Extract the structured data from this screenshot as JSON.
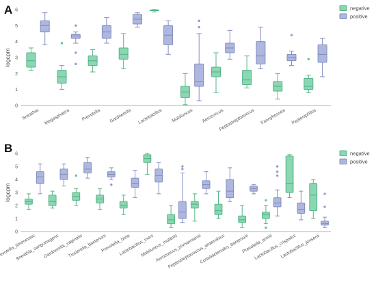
{
  "chart_data": [
    {
      "type": "box",
      "panel_label": "A",
      "ylabel": "logcpm",
      "ylim": [
        0,
        6
      ],
      "yticks": [
        0,
        1,
        2,
        3,
        4,
        5,
        6
      ],
      "grid": false,
      "legend_position": "top-right",
      "series": [
        {
          "name": "negative",
          "color": "#5ec795"
        },
        {
          "name": "positive",
          "color": "#8f9cd3"
        }
      ],
      "categories": [
        {
          "label": "Sneathia",
          "negative": {
            "min": 2.2,
            "q1": 2.4,
            "median": 2.8,
            "q3": 3.3,
            "max": 3.6,
            "outliers": []
          },
          "positive": {
            "min": 3.8,
            "q1": 4.6,
            "median": 5.0,
            "q3": 5.3,
            "max": 5.8,
            "outliers": []
          }
        },
        {
          "label": "Megasphaera",
          "negative": {
            "min": 1.0,
            "q1": 1.4,
            "median": 1.8,
            "q3": 2.2,
            "max": 2.5,
            "outliers": [
              3.9
            ]
          },
          "positive": {
            "min": 3.9,
            "q1": 4.2,
            "median": 4.35,
            "q3": 4.45,
            "max": 4.6,
            "outliers": [
              5.0,
              3.3,
              2.6
            ]
          }
        },
        {
          "label": "Prevotella",
          "negative": {
            "min": 2.1,
            "q1": 2.5,
            "median": 2.8,
            "q3": 3.1,
            "max": 3.5,
            "outliers": []
          },
          "positive": {
            "min": 3.9,
            "q1": 4.2,
            "median": 4.6,
            "q3": 5.0,
            "max": 5.5,
            "outliers": []
          }
        },
        {
          "label": "Gardnerella",
          "negative": {
            "min": 2.3,
            "q1": 2.9,
            "median": 3.2,
            "q3": 3.6,
            "max": 4.5,
            "outliers": []
          },
          "positive": {
            "min": 4.9,
            "q1": 5.1,
            "median": 5.4,
            "q3": 5.7,
            "max": 5.8,
            "outliers": []
          }
        },
        {
          "label": "Lactobacillus",
          "negative": {
            "min": 5.85,
            "q1": 5.93,
            "median": 5.96,
            "q3": 5.98,
            "max": 6.0,
            "outliers": []
          },
          "positive": {
            "min": 3.2,
            "q1": 3.8,
            "median": 4.4,
            "q3": 5.0,
            "max": 5.3,
            "outliers": []
          }
        },
        {
          "label": "Mobiluncus",
          "negative": {
            "min": 0.05,
            "q1": 0.5,
            "median": 0.85,
            "q3": 1.2,
            "max": 2.0,
            "outliers": []
          },
          "positive": {
            "min": 0.3,
            "q1": 1.2,
            "median": 1.5,
            "q3": 2.6,
            "max": 4.5,
            "outliers": [
              4.9,
              5.3
            ]
          }
        },
        {
          "label": "Aerococcus",
          "negative": {
            "min": 0.8,
            "q1": 1.8,
            "median": 2.1,
            "q3": 2.4,
            "max": 3.3,
            "outliers": []
          },
          "positive": {
            "min": 2.9,
            "q1": 3.3,
            "median": 3.6,
            "q3": 3.9,
            "max": 4.7,
            "outliers": []
          }
        },
        {
          "label": "Peptostreptococcus",
          "negative": {
            "min": 1.1,
            "q1": 1.3,
            "median": 1.6,
            "q3": 2.2,
            "max": 3.1,
            "outliers": []
          },
          "positive": {
            "min": 2.3,
            "q1": 2.6,
            "median": 3.1,
            "q3": 4.0,
            "max": 4.9,
            "outliers": []
          }
        },
        {
          "label": "Fannyhessea",
          "negative": {
            "min": 0.4,
            "q1": 0.9,
            "median": 1.2,
            "q3": 1.5,
            "max": 2.0,
            "outliers": []
          },
          "positive": {
            "min": 2.5,
            "q1": 2.8,
            "median": 3.0,
            "q3": 3.2,
            "max": 3.4,
            "outliers": [
              4.4
            ]
          }
        },
        {
          "label": "Peptoniphilus",
          "negative": {
            "min": 0.8,
            "q1": 1.0,
            "median": 1.2,
            "q3": 1.7,
            "max": 1.9,
            "outliers": [
              2.9
            ]
          },
          "positive": {
            "min": 1.8,
            "q1": 2.7,
            "median": 3.2,
            "q3": 3.8,
            "max": 4.2,
            "outliers": []
          }
        }
      ]
    },
    {
      "type": "box",
      "panel_label": "B",
      "ylabel": "logcpm",
      "ylim": [
        0,
        6
      ],
      "yticks": [
        0,
        1,
        2,
        3,
        4,
        5,
        6
      ],
      "grid": false,
      "legend_position": "top-right",
      "series": [
        {
          "name": "negative",
          "color": "#5ec795"
        },
        {
          "name": "positive",
          "color": "#8f9cd3"
        }
      ],
      "categories": [
        {
          "label": "Prevotella_timonensis",
          "negative": {
            "min": 1.7,
            "q1": 2.1,
            "median": 2.3,
            "q3": 2.5,
            "max": 2.9,
            "outliers": []
          },
          "positive": {
            "min": 2.9,
            "q1": 3.7,
            "median": 4.2,
            "q3": 4.6,
            "max": 5.2,
            "outliers": []
          }
        },
        {
          "label": "Sneathia_sanguinegens",
          "negative": {
            "min": 1.8,
            "q1": 2.0,
            "median": 2.3,
            "q3": 2.8,
            "max": 3.1,
            "outliers": []
          },
          "positive": {
            "min": 3.5,
            "q1": 4.0,
            "median": 4.4,
            "q3": 4.8,
            "max": 5.2,
            "outliers": []
          }
        },
        {
          "label": "Gardnerella_vaginalis",
          "negative": {
            "min": 2.0,
            "q1": 2.4,
            "median": 2.7,
            "q3": 3.0,
            "max": 3.3,
            "outliers": [
              4.3
            ]
          },
          "positive": {
            "min": 4.1,
            "q1": 4.5,
            "median": 4.8,
            "q3": 5.3,
            "max": 5.7,
            "outliers": []
          }
        },
        {
          "label": "Tissierella_bacterium",
          "negative": {
            "min": 1.7,
            "q1": 2.2,
            "median": 2.5,
            "q3": 2.8,
            "max": 3.3,
            "outliers": []
          },
          "positive": {
            "min": 4.0,
            "q1": 4.2,
            "median": 4.4,
            "q3": 4.6,
            "max": 4.9,
            "outliers": [
              3.6
            ]
          }
        },
        {
          "label": "Prevotella_bivia",
          "negative": {
            "min": 1.3,
            "q1": 1.8,
            "median": 2.0,
            "q3": 2.3,
            "max": 2.8,
            "outliers": []
          },
          "positive": {
            "min": 2.6,
            "q1": 3.4,
            "median": 3.7,
            "q3": 4.1,
            "max": 4.7,
            "outliers": []
          }
        },
        {
          "label": "Lactobacillus_iners",
          "negative": {
            "min": 4.4,
            "q1": 5.3,
            "median": 5.6,
            "q3": 5.9,
            "max": 6.0,
            "outliers": []
          },
          "positive": {
            "min": 2.9,
            "q1": 3.8,
            "median": 4.3,
            "q3": 4.8,
            "max": 5.3,
            "outliers": []
          }
        },
        {
          "label": "Mobiluncus_mulieris",
          "negative": {
            "min": 0.3,
            "q1": 0.6,
            "median": 0.9,
            "q3": 1.3,
            "max": 2.0,
            "outliers": []
          },
          "positive": {
            "min": 0.7,
            "q1": 1.0,
            "median": 1.5,
            "q3": 2.3,
            "max": 4.5,
            "outliers": [
              4.8,
              5.0
            ]
          }
        },
        {
          "label": "Aerococcus_christensenii",
          "negative": {
            "min": 0.8,
            "q1": 1.8,
            "median": 2.1,
            "q3": 2.3,
            "max": 2.9,
            "outliers": []
          },
          "positive": {
            "min": 2.9,
            "q1": 3.3,
            "median": 3.6,
            "q3": 3.9,
            "max": 4.6,
            "outliers": []
          }
        },
        {
          "label": "Peptostreptococcus_anaerobius",
          "negative": {
            "min": 1.0,
            "q1": 1.3,
            "median": 1.6,
            "q3": 2.1,
            "max": 3.1,
            "outliers": []
          },
          "positive": {
            "min": 2.3,
            "q1": 2.6,
            "median": 3.1,
            "q3": 4.0,
            "max": 4.9,
            "outliers": []
          }
        },
        {
          "label": "Coriobacteriales_bacterium",
          "negative": {
            "min": 0.3,
            "q1": 0.7,
            "median": 0.9,
            "q3": 1.2,
            "max": 2.0,
            "outliers": []
          },
          "positive": {
            "min": 2.9,
            "q1": 3.1,
            "median": 3.3,
            "q3": 3.5,
            "max": 3.6,
            "outliers": []
          }
        },
        {
          "label": "Prevotella_amnii",
          "negative": {
            "min": 0.6,
            "q1": 1.0,
            "median": 1.3,
            "q3": 1.5,
            "max": 2.0,
            "outliers": [
              2.4,
              0.3
            ]
          },
          "positive": {
            "min": 1.2,
            "q1": 1.9,
            "median": 2.2,
            "q3": 2.6,
            "max": 3.2,
            "outliers": [
              4.3,
              4.6,
              5.0
            ]
          }
        },
        {
          "label": "Lactobacillus_crispatus",
          "negative": {
            "min": 2.6,
            "q1": 3.0,
            "median": 3.7,
            "q3": 5.8,
            "max": 5.9,
            "outliers": []
          },
          "positive": {
            "min": 0.9,
            "q1": 1.4,
            "median": 1.7,
            "q3": 2.2,
            "max": 3.1,
            "outliers": []
          }
        },
        {
          "label": "Lactobacillus_jensenii",
          "negative": {
            "min": 1.0,
            "q1": 1.6,
            "median": 2.8,
            "q3": 3.7,
            "max": 4.0,
            "outliers": []
          },
          "positive": {
            "min": 0.3,
            "q1": 0.5,
            "median": 0.6,
            "q3": 0.8,
            "max": 1.1,
            "outliers": [
              2.9,
              1.9
            ]
          }
        }
      ]
    }
  ]
}
